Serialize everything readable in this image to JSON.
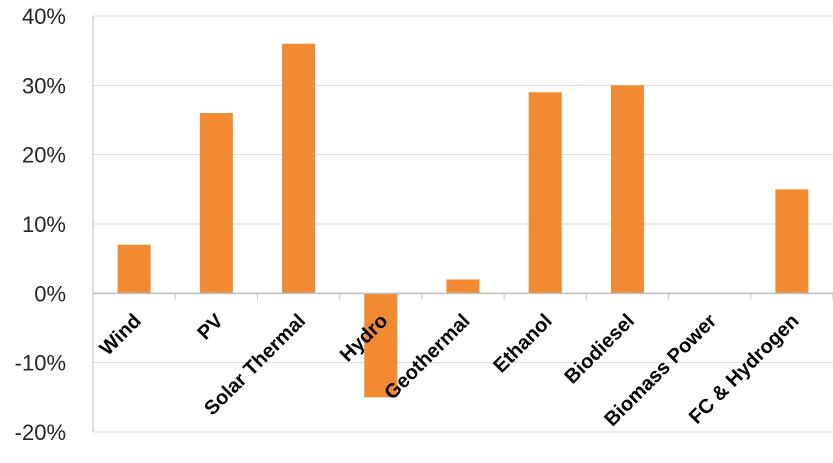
{
  "chart_data": {
    "type": "bar",
    "categories": [
      "Wind",
      "PV",
      "Solar Thermal",
      "Hydro",
      "Geothermal",
      "Ethanol",
      "Biodiesel",
      "Biomass Power",
      "FC & Hydrogen"
    ],
    "values": [
      7,
      26,
      36,
      -15,
      2,
      29,
      30,
      0,
      15
    ],
    "ylim": [
      -20,
      40
    ],
    "yticks": [
      40,
      30,
      20,
      10,
      0,
      -10,
      -20
    ],
    "ytick_labels": [
      "40%",
      "30%",
      "20%",
      "10%",
      "0%",
      "-10%",
      "-20%"
    ],
    "grid": true,
    "legend": "none",
    "colors": {
      "bar": "#f28a32",
      "grid": "#d9d9d9",
      "axis": "#bfbfbf"
    }
  }
}
